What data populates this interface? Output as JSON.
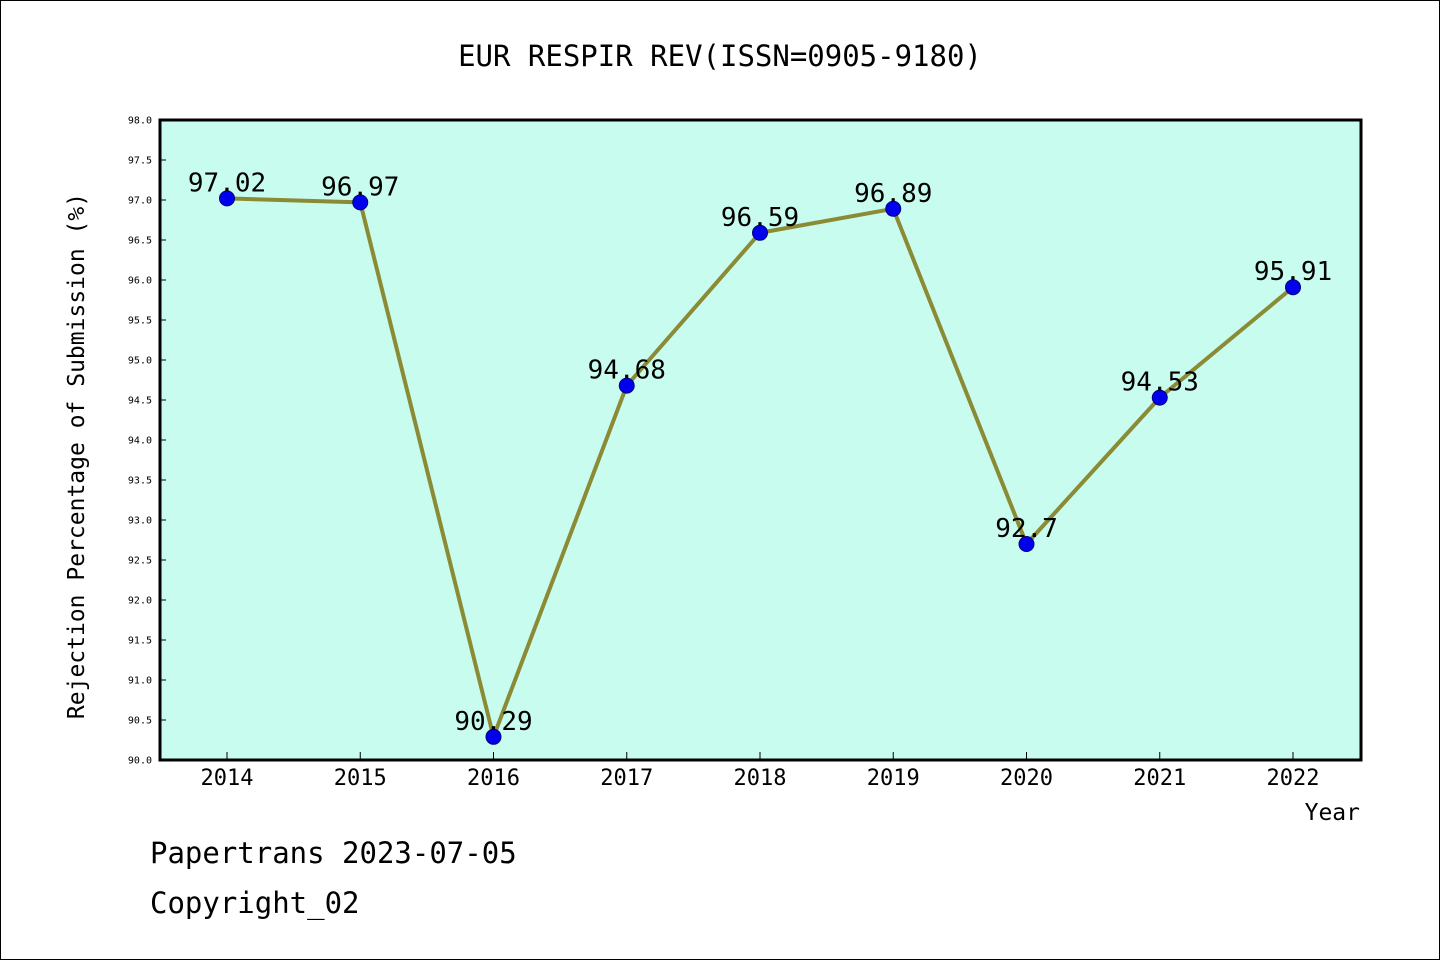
{
  "chart_data": {
    "type": "line",
    "title": "EUR RESPIR REV(ISSN=0905-9180)",
    "xlabel": "Year",
    "ylabel": "Rejection Percentage of Submission (%)",
    "categories": [
      "2014",
      "2015",
      "2016",
      "2017",
      "2018",
      "2019",
      "2020",
      "2021",
      "2022"
    ],
    "values": [
      97.02,
      96.97,
      90.29,
      94.68,
      96.59,
      96.89,
      92.7,
      94.53,
      95.91
    ],
    "data_labels": [
      "97.02",
      "96.97",
      "90.29",
      "94.68",
      "96.59",
      "96.89",
      "92.7",
      "94.53",
      "95.91"
    ],
    "ylim": [
      90.0,
      98.0
    ],
    "yticks": [
      "90.0",
      "90.5",
      "91.0",
      "91.5",
      "92.0",
      "92.5",
      "93.0",
      "93.5",
      "94.0",
      "94.5",
      "95.0",
      "95.5",
      "96.0",
      "96.5",
      "97.0",
      "97.5",
      "98.0"
    ],
    "grid": false,
    "colors": {
      "plot_background": "#c8fcee",
      "line": "#8b8a35",
      "marker": "#0000ee",
      "marker_edge": "#000080"
    }
  },
  "footer": {
    "line1": "Papertrans 2023-07-05",
    "line2": "Copyright_02"
  }
}
